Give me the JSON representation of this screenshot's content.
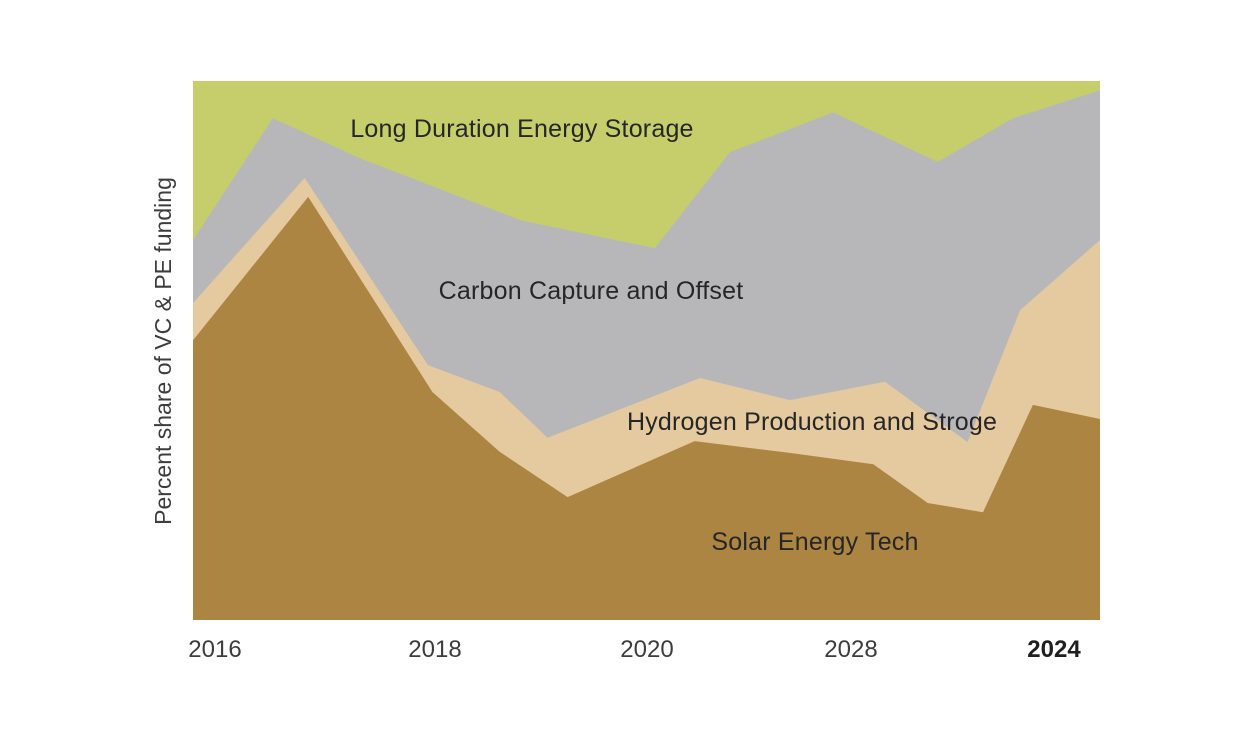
{
  "figure": {
    "background_color": "#ffffff",
    "y_axis_label": "Percent share of VC & PE funding",
    "x_axis": {
      "ticks": [
        {
          "label": "2016",
          "bold": false
        },
        {
          "label": "2018",
          "bold": false
        },
        {
          "label": "2020",
          "bold": false
        },
        {
          "label": "2028",
          "bold": false
        },
        {
          "label": "2024",
          "bold": true
        }
      ]
    }
  },
  "chart_data": {
    "type": "area",
    "stacked": true,
    "title": "",
    "xlabel": "",
    "ylabel": "Percent share of VC & PE funding",
    "ylim": [
      0,
      100
    ],
    "grid": false,
    "legend_position": "labels-inside-areas",
    "x_tick_labels": [
      "2016",
      "2018",
      "2020",
      "2028",
      "2024"
    ],
    "x_tick_positions_pct": [
      2.4,
      26.7,
      50.1,
      72.6,
      94.9
    ],
    "encoding_note": "points are [x_percent_across_plot, cumulative_stack_top_percent]; series listed bottom of stack (order 1) to top (order 4)",
    "series": [
      {
        "name": "Solar Energy Tech",
        "color": "#ad8543",
        "stack_order": 1,
        "cumulative_top_points": [
          [
            0,
            51.9
          ],
          [
            12.7,
            78.5
          ],
          [
            26.4,
            42.3
          ],
          [
            33.8,
            31.2
          ],
          [
            41.3,
            22.8
          ],
          [
            55.3,
            33.2
          ],
          [
            65.8,
            31.0
          ],
          [
            75.0,
            28.9
          ],
          [
            81.0,
            21.7
          ],
          [
            87.1,
            20.0
          ],
          [
            92.6,
            39.9
          ],
          [
            100,
            37.3
          ]
        ]
      },
      {
        "name": "Hydrogen Production and Stroge",
        "color": "#e4ca9e",
        "stack_order": 2,
        "cumulative_top_points": [
          [
            0,
            58.8
          ],
          [
            12.3,
            82.0
          ],
          [
            25.9,
            47.3
          ],
          [
            33.8,
            42.3
          ],
          [
            39.1,
            33.8
          ],
          [
            55.9,
            44.9
          ],
          [
            65.8,
            40.8
          ],
          [
            76.3,
            44.2
          ],
          [
            85.4,
            33.0
          ],
          [
            91.2,
            57.5
          ],
          [
            100,
            70.5
          ]
        ]
      },
      {
        "name": "Carbon Capture and Offset",
        "color": "#b7b7b9",
        "stack_order": 3,
        "cumulative_top_points": [
          [
            0,
            70.5
          ],
          [
            8.8,
            93.1
          ],
          [
            18.4,
            85.7
          ],
          [
            36.1,
            74.2
          ],
          [
            50.9,
            69.0
          ],
          [
            59.2,
            86.8
          ],
          [
            70.6,
            94.2
          ],
          [
            82.1,
            85.0
          ],
          [
            90.4,
            93.1
          ],
          [
            100,
            98.3
          ]
        ]
      },
      {
        "name": "Long Duration Energy Storage",
        "color": "#c6ce6c",
        "stack_order": 4,
        "cumulative_top_points": [
          [
            0,
            100
          ],
          [
            100,
            100
          ]
        ]
      }
    ]
  }
}
